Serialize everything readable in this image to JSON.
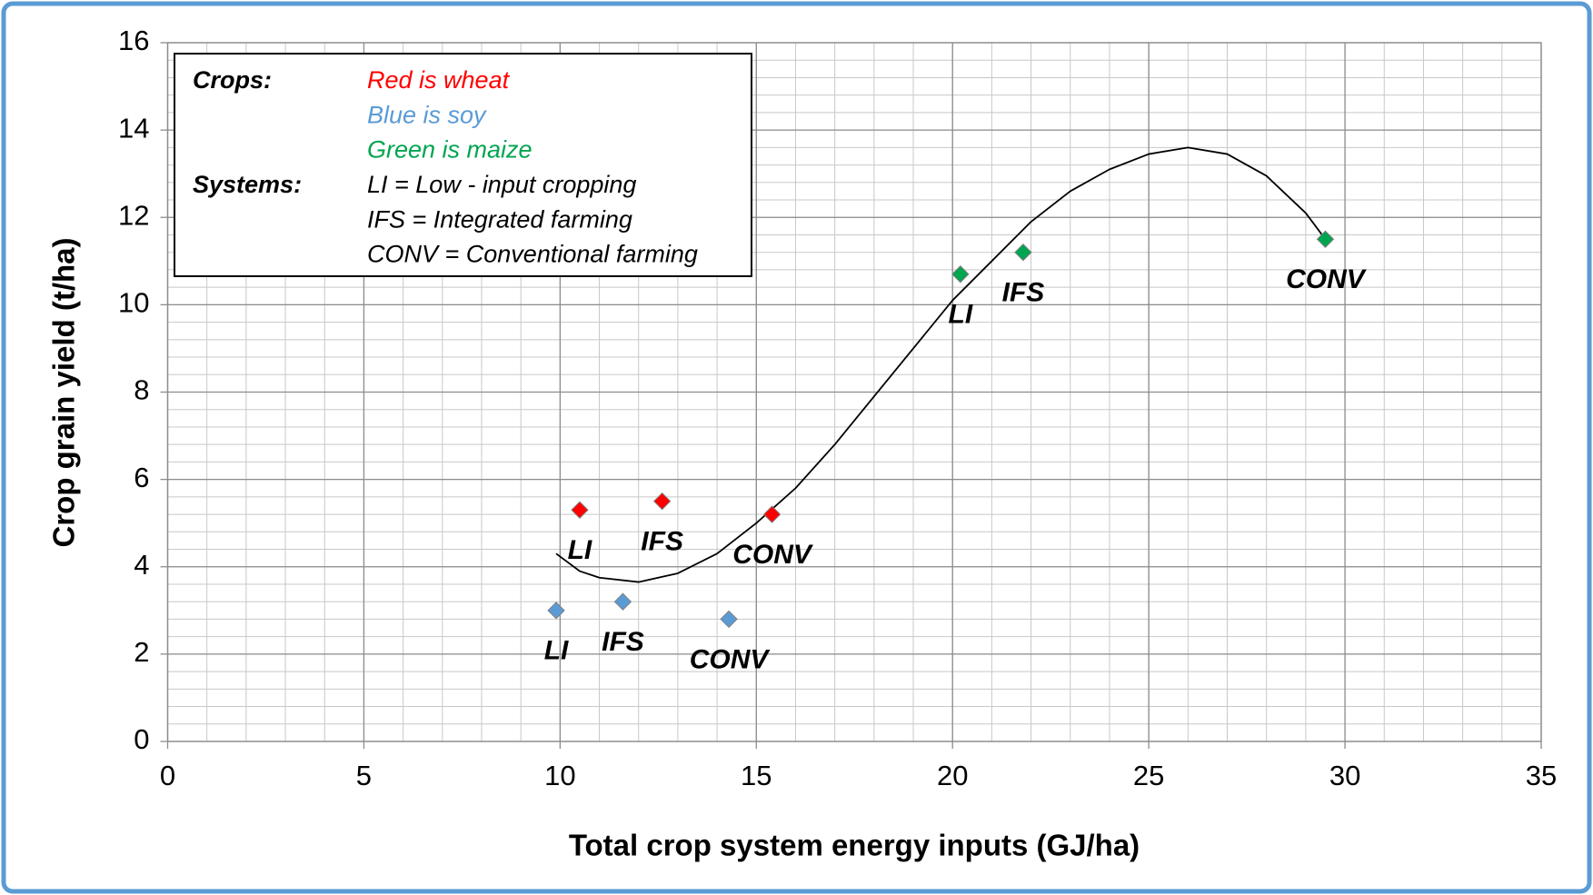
{
  "chart_data": {
    "type": "scatter",
    "x_label": "Total crop system energy inputs (GJ/ha)",
    "y_label": "Crop grain yield (t/ha)",
    "xlim": [
      0,
      35
    ],
    "xticks": [
      0,
      5,
      10,
      15,
      20,
      25,
      30,
      35
    ],
    "ylim": [
      0,
      16
    ],
    "yticks": [
      0,
      2,
      4,
      6,
      8,
      10,
      12,
      14,
      16
    ],
    "grid": true,
    "minor_grid": {
      "x": 1,
      "y": 0.4
    },
    "legend": "top-left",
    "legend_headings": {
      "crops": "Crops:",
      "systems": "Systems:"
    },
    "legend_systems": [
      "LI = Low - input cropping",
      "IFS = Integrated farming",
      "CONV = Conventional farming"
    ],
    "series": [
      {
        "name": "Red is wheat",
        "color": "#ff0000",
        "x": [
          10.5,
          12.6,
          15.4
        ],
        "values": [
          5.3,
          5.5,
          5.2
        ],
        "point_labels": [
          "LI",
          "IFS",
          "CONV"
        ]
      },
      {
        "name": "Blue is soy",
        "color": "#5b9bd5",
        "x": [
          9.9,
          11.6,
          14.3
        ],
        "values": [
          3.0,
          3.2,
          2.8
        ],
        "point_labels": [
          "LI",
          "IFS",
          "CONV"
        ]
      },
      {
        "name": "Green is maize",
        "color": "#00a550",
        "x": [
          20.2,
          21.8,
          29.5
        ],
        "values": [
          10.7,
          11.2,
          11.5
        ],
        "point_labels": [
          "LI",
          "IFS",
          "CONV"
        ]
      }
    ],
    "trendline": {
      "color": "#000000",
      "x": [
        9.9,
        10.5,
        11,
        12,
        13,
        14,
        15,
        16,
        17,
        18,
        19,
        20,
        21,
        22,
        23,
        24,
        25,
        26,
        27,
        28,
        29,
        29.5
      ],
      "y": [
        4.3,
        3.9,
        3.75,
        3.65,
        3.85,
        4.3,
        5.0,
        5.8,
        6.8,
        7.9,
        9.0,
        10.1,
        11.0,
        11.9,
        12.6,
        13.1,
        13.45,
        13.6,
        13.45,
        12.95,
        12.1,
        11.5
      ]
    }
  }
}
